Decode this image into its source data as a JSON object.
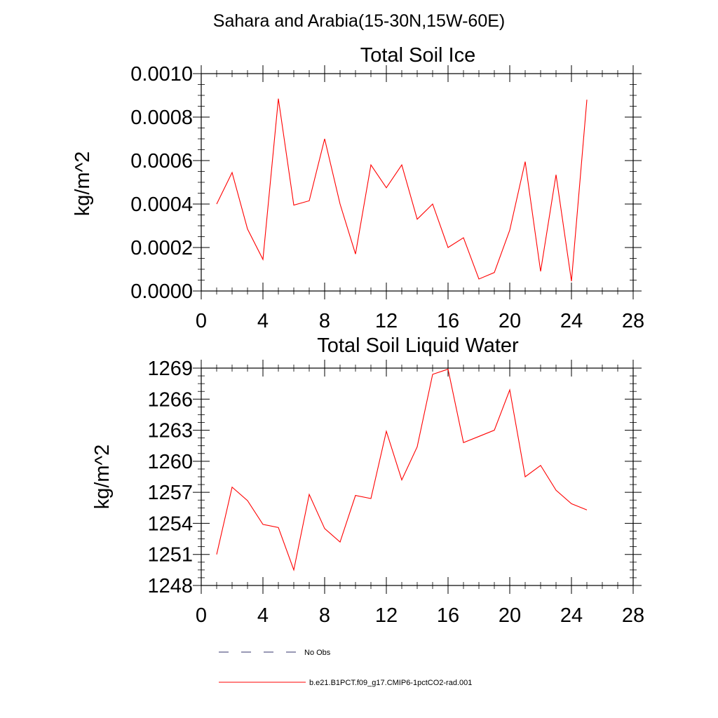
{
  "figure": {
    "title": "Sahara and Arabia(15-30N,15W-60E)"
  },
  "legend": {
    "items": [
      {
        "label": "No Obs",
        "style": "dashed",
        "color": "#33336b"
      },
      {
        "label": "b.e21.B1PCT.f09_g17.CMIP6-1pctCO2-rad.001",
        "style": "solid",
        "color": "#ff0000"
      }
    ]
  },
  "chart_data": [
    {
      "type": "line",
      "title": "Total Soil Ice",
      "xlabel": "",
      "ylabel": "kg/m^2",
      "xlim": [
        0,
        28
      ],
      "ylim": [
        0,
        0.001
      ],
      "xticks": [
        0,
        4,
        8,
        12,
        16,
        20,
        24,
        28
      ],
      "xtick_labels": [
        "0",
        "4",
        "8",
        "12",
        "16",
        "20",
        "24",
        "28"
      ],
      "yticks": [
        0,
        0.0002,
        0.0004,
        0.0006,
        0.0008,
        0.001
      ],
      "ytick_labels": [
        "0.0000",
        "0.0002",
        "0.0004",
        "0.0006",
        "0.0008",
        "0.0010"
      ],
      "grid": false,
      "series": [
        {
          "color": "#ff0000",
          "x": [
            1,
            2,
            3,
            4,
            5,
            6,
            7,
            8,
            9,
            10,
            11,
            12,
            13,
            14,
            15,
            16,
            17,
            18,
            19,
            20,
            21,
            22,
            23,
            24,
            25
          ],
          "y": [
            0.0004,
            0.000545,
            0.000285,
            0.000145,
            0.000885,
            0.000395,
            0.000415,
            0.0007,
            0.0004,
            0.00017,
            0.00058,
            0.000475,
            0.00058,
            0.00033,
            0.0004,
            0.0002,
            0.000245,
            5.5e-05,
            8.5e-05,
            0.00028,
            0.000595,
            9e-05,
            0.000535,
            4.5e-05,
            0.00088
          ]
        }
      ]
    },
    {
      "type": "line",
      "title": "Total Soil Liquid Water",
      "xlabel": "",
      "ylabel": "kg/m^2",
      "xlim": [
        0,
        28
      ],
      "ylim": [
        1248,
        1269
      ],
      "xticks": [
        0,
        4,
        8,
        12,
        16,
        20,
        24,
        28
      ],
      "xtick_labels": [
        "0",
        "4",
        "8",
        "12",
        "16",
        "20",
        "24",
        "28"
      ],
      "yticks": [
        1248,
        1251,
        1254,
        1257,
        1260,
        1263,
        1266,
        1269
      ],
      "ytick_labels": [
        "1248",
        "1251",
        "1254",
        "1257",
        "1260",
        "1263",
        "1266",
        "1269"
      ],
      "grid": false,
      "series": [
        {
          "color": "#ff0000",
          "x": [
            1,
            2,
            3,
            4,
            5,
            6,
            7,
            8,
            9,
            10,
            11,
            12,
            13,
            14,
            15,
            16,
            17,
            18,
            19,
            20,
            21,
            22,
            23,
            24,
            25
          ],
          "y": [
            1251.0,
            1257.5,
            1256.2,
            1253.9,
            1253.6,
            1249.5,
            1256.8,
            1253.5,
            1252.2,
            1256.7,
            1256.4,
            1262.9,
            1258.2,
            1261.4,
            1268.4,
            1268.9,
            1261.8,
            1262.4,
            1263.0,
            1266.9,
            1258.5,
            1259.6,
            1257.2,
            1255.9,
            1255.3
          ]
        }
      ]
    }
  ]
}
